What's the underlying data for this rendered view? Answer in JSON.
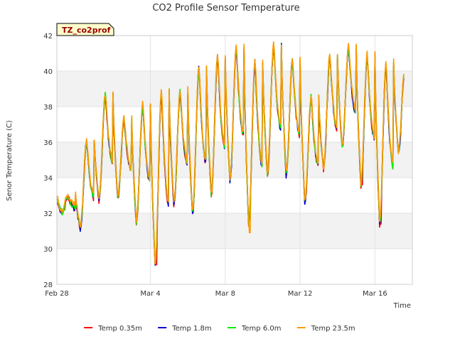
{
  "chart_data": {
    "type": "line",
    "title": "CO2 Profile Sensor Temperature",
    "xlabel": "Time",
    "ylabel": "Senor Temperature (C)",
    "site_label": "TZ_co2prof",
    "ylim": [
      28,
      42
    ],
    "yticks": [
      28,
      30,
      32,
      34,
      36,
      38,
      40,
      42
    ],
    "xlim": [
      "2016-02-28",
      "2016-03-18"
    ],
    "xticks": [
      {
        "date": "2016-02-28",
        "label": "Feb 28"
      },
      {
        "date": "2016-03-04",
        "label": "Mar 4"
      },
      {
        "date": "2016-03-08",
        "label": "Mar 8"
      },
      {
        "date": "2016-03-12",
        "label": "Mar 12"
      },
      {
        "date": "2016-03-16",
        "label": "Mar 16"
      }
    ],
    "grid": true,
    "band_fill": "#f2f2f2",
    "legend_position": "bottom",
    "daily_temperature_cycle": [
      {
        "date": "2016-02-28",
        "min": 32.0,
        "max": 33.0
      },
      {
        "date": "2016-02-29",
        "min": 31.2,
        "max": 36.1
      },
      {
        "date": "2016-03-01",
        "min": 32.8,
        "max": 38.7
      },
      {
        "date": "2016-03-02",
        "min": 32.9,
        "max": 37.3
      },
      {
        "date": "2016-03-03",
        "min": 31.5,
        "max": 38.1
      },
      {
        "date": "2016-03-04",
        "min": 29.1,
        "max": 38.9
      },
      {
        "date": "2016-03-05",
        "min": 32.5,
        "max": 38.9
      },
      {
        "date": "2016-03-06",
        "min": 32.0,
        "max": 40.2
      },
      {
        "date": "2016-03-07",
        "min": 33.0,
        "max": 40.9
      },
      {
        "date": "2016-03-08",
        "min": 33.8,
        "max": 41.3
      },
      {
        "date": "2016-03-09",
        "min": 31.5,
        "max": 40.6
      },
      {
        "date": "2016-03-10",
        "min": 34.2,
        "max": 41.5
      },
      {
        "date": "2016-03-11",
        "min": 34.2,
        "max": 40.6
      },
      {
        "date": "2016-03-12",
        "min": 32.6,
        "max": 38.6
      },
      {
        "date": "2016-03-13",
        "min": 34.5,
        "max": 40.9
      },
      {
        "date": "2016-03-14",
        "min": 35.7,
        "max": 41.4
      },
      {
        "date": "2016-03-15",
        "min": 33.6,
        "max": 40.9
      },
      {
        "date": "2016-03-16",
        "min": 31.4,
        "max": 40.5
      },
      {
        "date": "2016-03-17",
        "min": 35.4,
        "max": 40.1
      }
    ],
    "series": [
      {
        "name": "Temp 0.35m",
        "color": "#ff0000",
        "offset": -0.1,
        "anomalies": [
          {
            "date": "2016-03-04",
            "value": 29.1
          },
          {
            "date": "2016-03-15",
            "value": 33.6
          },
          {
            "date": "2016-03-16",
            "value": 31.4
          }
        ]
      },
      {
        "name": "Temp 1.8m",
        "color": "#0000cc",
        "offset": -0.05,
        "anomalies": [
          {
            "date": "2016-03-09",
            "value": 31.8
          }
        ]
      },
      {
        "name": "Temp 6.0m",
        "color": "#00ee00",
        "offset": 0.0,
        "anomalies": []
      },
      {
        "name": "Temp 23.5m",
        "color": "#ff9900",
        "offset": 0.1,
        "anomalies": [
          {
            "date": "2016-03-09",
            "value": 30.9
          }
        ]
      }
    ]
  }
}
